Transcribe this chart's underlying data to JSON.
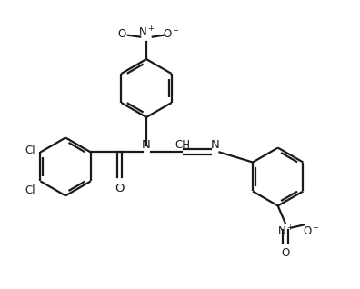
{
  "bg_color": "#ffffff",
  "line_color": "#1a1a1a",
  "line_width": 1.6,
  "font_size": 8.5,
  "figsize": [
    3.96,
    3.18
  ],
  "dpi": 100,
  "xlim": [
    -4.5,
    6.0
  ],
  "ylim": [
    -3.2,
    4.5
  ]
}
